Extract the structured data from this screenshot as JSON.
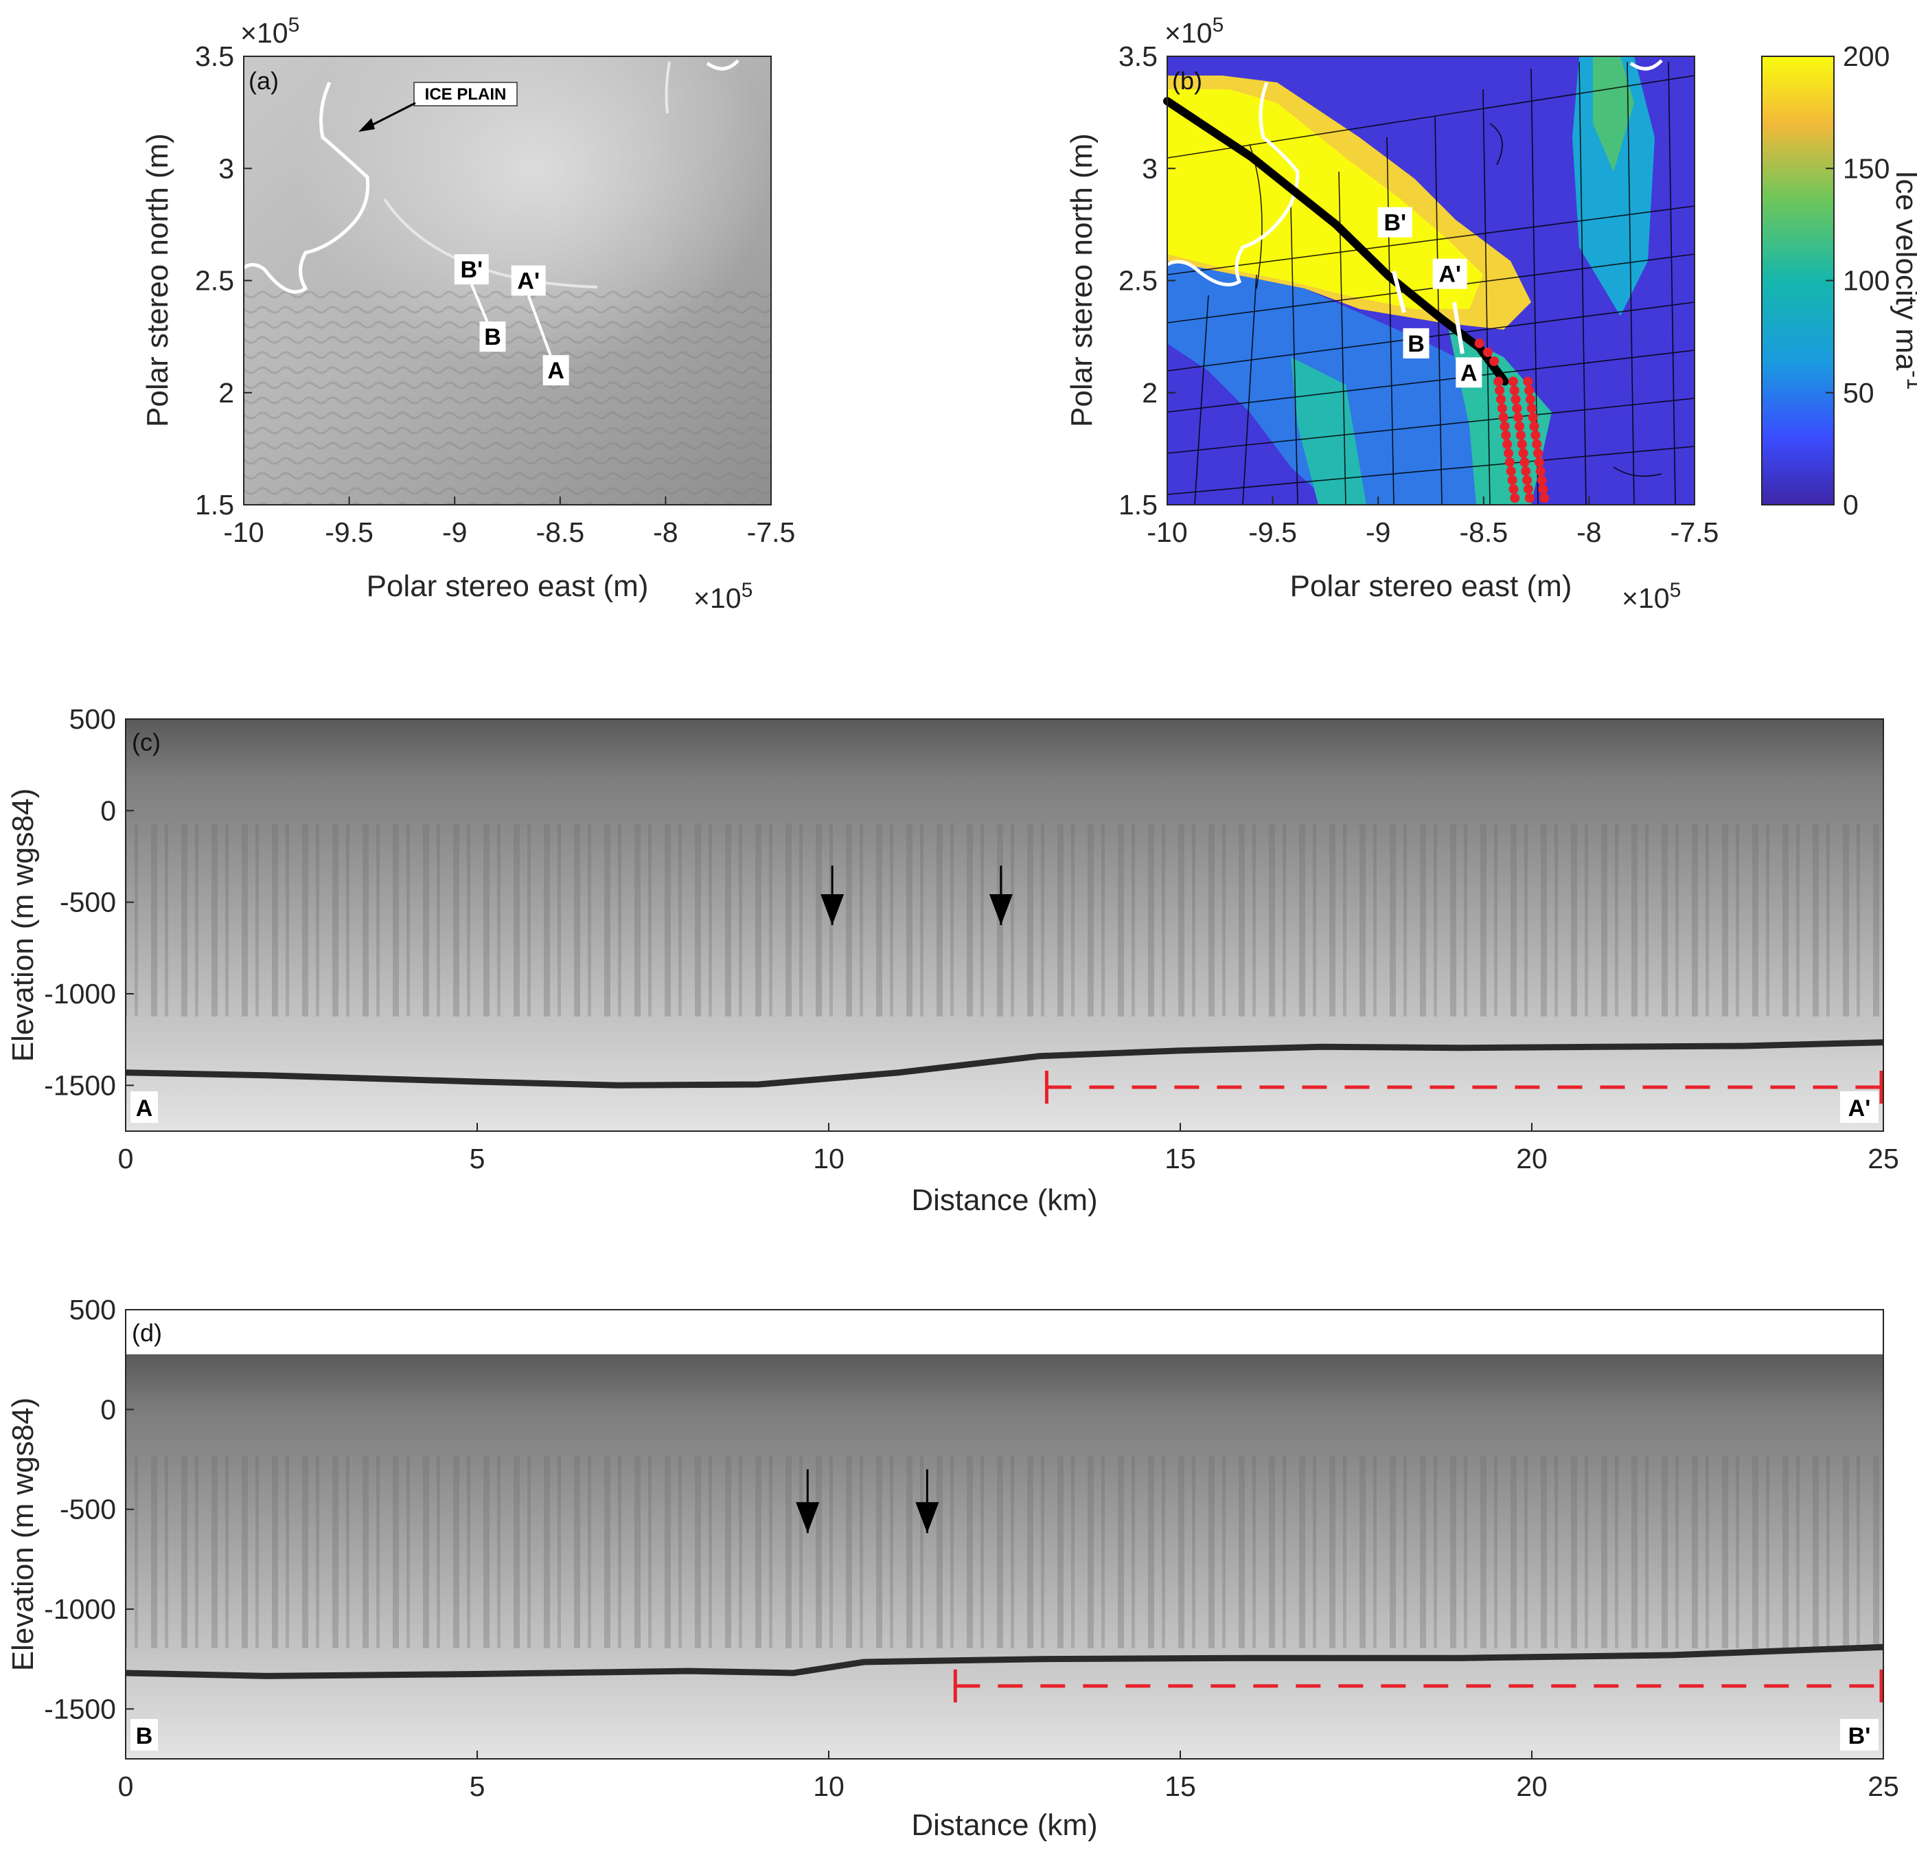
{
  "chart_data": [
    {
      "type": "image-map",
      "panel_label": "(a)",
      "xlabel": "Polar stereo east (m)",
      "ylabel": "Polar stereo north (m)",
      "x_exponent_label": "×10",
      "x_exponent_power": "5",
      "y_exponent_label": "×10",
      "y_exponent_power": "5",
      "xlim": [
        -10,
        -7.5
      ],
      "ylim": [
        1.5,
        3.5
      ],
      "x_ticks": [
        "-10",
        "-9.5",
        "-9",
        "-8.5",
        "-8",
        "-7.5"
      ],
      "y_ticks": [
        "1.5",
        "2",
        "2.5",
        "3",
        "3.5"
      ],
      "annotation": "ICE PLAIN",
      "markers": [
        {
          "label": "B'",
          "x": -8.92,
          "y": 2.55
        },
        {
          "label": "B",
          "x": -8.82,
          "y": 2.25
        },
        {
          "label": "A'",
          "x": -8.65,
          "y": 2.5
        },
        {
          "label": "A",
          "x": -8.52,
          "y": 2.1
        }
      ]
    },
    {
      "type": "heatmap",
      "panel_label": "(b)",
      "xlabel": "Polar stereo east (m)",
      "ylabel": "Polar stereo north (m)",
      "x_exponent_label": "×10",
      "x_exponent_power": "5",
      "y_exponent_label": "×10",
      "y_exponent_power": "5",
      "xlim": [
        -10,
        -7.5
      ],
      "ylim": [
        1.5,
        3.5
      ],
      "x_ticks": [
        "-10",
        "-9.5",
        "-9",
        "-8.5",
        "-8",
        "-7.5"
      ],
      "y_ticks": [
        "1.5",
        "2",
        "2.5",
        "3",
        "3.5"
      ],
      "colorbar_label": "Ice velocity ma",
      "colorbar_label_power": "-1",
      "colorbar_range": [
        0,
        200
      ],
      "colorbar_ticks": [
        "0",
        "50",
        "100",
        "150",
        "200"
      ],
      "flowline": [
        [
          -10,
          3.3
        ],
        [
          -9.6,
          3.05
        ],
        [
          -9.2,
          2.75
        ],
        [
          -8.95,
          2.52
        ],
        [
          -8.7,
          2.33
        ],
        [
          -8.52,
          2.2
        ],
        [
          -8.4,
          2.05
        ]
      ],
      "markers": [
        {
          "label": "B'",
          "x": -8.92,
          "y": 2.76
        },
        {
          "label": "B",
          "x": -8.82,
          "y": 2.22
        },
        {
          "label": "A'",
          "x": -8.66,
          "y": 2.53
        },
        {
          "label": "A",
          "x": -8.57,
          "y": 2.09
        }
      ]
    },
    {
      "type": "image-profile",
      "panel_label": "(c)",
      "xlabel": "Distance (km)",
      "ylabel": "Elevation (m wgs84)",
      "xlim": [
        0,
        25
      ],
      "ylim": [
        -1750,
        500
      ],
      "x_ticks": [
        "0",
        "5",
        "10",
        "15",
        "20",
        "25"
      ],
      "y_ticks": [
        "500",
        "0",
        "-500",
        "-1000",
        "-1500"
      ],
      "start_label": "A",
      "end_label": "A'",
      "bed_profile": {
        "x": [
          0,
          2,
          5,
          7,
          9,
          11,
          13,
          15,
          17,
          19,
          21,
          23,
          25
        ],
        "y": [
          -1430,
          -1445,
          -1480,
          -1500,
          -1495,
          -1430,
          -1340,
          -1310,
          -1290,
          -1295,
          -1290,
          -1285,
          -1265
        ]
      },
      "marker_range": {
        "x": [
          13.1,
          25
        ],
        "y": -1510
      },
      "arrows_x": [
        10.05,
        12.45
      ]
    },
    {
      "type": "image-profile",
      "panel_label": "(d)",
      "xlabel": "Distance (km)",
      "ylabel": "Elevation (m wgs84)",
      "xlim": [
        0,
        25
      ],
      "ylim": [
        -1750,
        500
      ],
      "x_ticks": [
        "0",
        "5",
        "10",
        "15",
        "20",
        "25"
      ],
      "y_ticks": [
        "500",
        "0",
        "-500",
        "-1000",
        "-1500"
      ],
      "start_label": "B",
      "end_label": "B'",
      "bed_profile": {
        "x": [
          0,
          2,
          5,
          8,
          9.5,
          10.5,
          13,
          16,
          19,
          22,
          25
        ],
        "y": [
          -1320,
          -1335,
          -1325,
          -1310,
          -1320,
          -1265,
          -1250,
          -1245,
          -1245,
          -1230,
          -1190
        ]
      },
      "marker_range": {
        "x": [
          11.8,
          25
        ],
        "y": -1385
      },
      "arrows_x": [
        9.7,
        11.4
      ]
    }
  ]
}
